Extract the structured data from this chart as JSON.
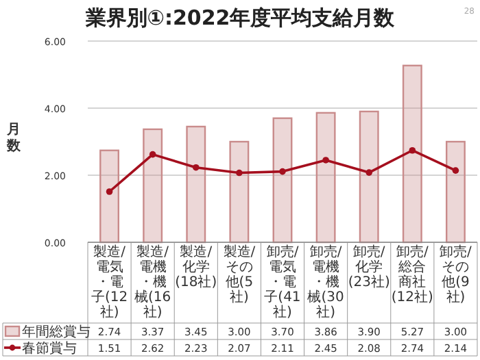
{
  "chart_data": {
    "type": "bar",
    "title": "業界別①:2022年度平均支給月数",
    "ylabel": "月数",
    "categories": [
      "製造/電気・電子(12社)",
      "製造/電機・機械(16社)",
      "製造/化学(18社)",
      "製造/その他(5社)",
      "卸売/電気・電子(41社)",
      "卸売/電機・機械(30社)",
      "卸売/化学(23社)",
      "卸売/総合商社(12社)",
      "卸売/その他(9社)"
    ],
    "series": [
      {
        "name": "年間総賞与",
        "color": "#c98b8b",
        "values": [
          2.74,
          3.37,
          3.45,
          3.0,
          3.7,
          3.86,
          3.9,
          5.27,
          3.0
        ],
        "value_labels": [
          "2.74",
          "3.37",
          "3.45",
          "3.00",
          "3.70",
          "3.86",
          "3.90",
          "5.27",
          "3.00"
        ]
      },
      {
        "name": "春節賞与",
        "type": "line",
        "color": "#a50f1e",
        "marker": "circle",
        "values": [
          1.51,
          2.62,
          2.23,
          2.07,
          2.11,
          2.45,
          2.08,
          2.74,
          2.14
        ],
        "value_labels": [
          "1.51",
          "2.62",
          "2.23",
          "2.07",
          "2.11",
          "2.45",
          "2.08",
          "2.74",
          "2.14"
        ]
      }
    ],
    "ylim": [
      0,
      6
    ],
    "yticks": [
      {
        "value": 0,
        "label": "0.00"
      },
      {
        "value": 2,
        "label": "2.00"
      },
      {
        "value": 4,
        "label": "4.00"
      },
      {
        "value": 6,
        "label": "6.00"
      }
    ],
    "grid": "y",
    "legend": "bottom",
    "annotations": [
      "28"
    ]
  }
}
